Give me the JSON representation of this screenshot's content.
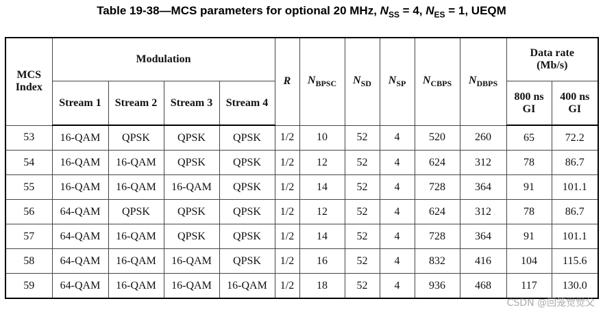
{
  "title": [
    "Table 19-38—MCS parameters for optional 20 MHz, ",
    "N",
    "SS",
    " = 4, ",
    "N",
    "ES",
    " = 1, UEQM"
  ],
  "headers": {
    "mcs_index": "MCS Index",
    "modulation": "Modulation",
    "streams": [
      "Stream 1",
      "Stream 2",
      "Stream 3",
      "Stream 4"
    ],
    "r": "R",
    "n_params": [
      {
        "symbol": "N",
        "sub": "BPSC"
      },
      {
        "symbol": "N",
        "sub": "SD"
      },
      {
        "symbol": "N",
        "sub": "SP"
      },
      {
        "symbol": "N",
        "sub": "CBPS"
      },
      {
        "symbol": "N",
        "sub": "DBPS"
      }
    ],
    "data_rate": "Data rate (Mb/s)",
    "gi": [
      "800 ns GI",
      "400 ns GI"
    ]
  },
  "table": {
    "rows": [
      [
        "53",
        "16-QAM",
        "QPSK",
        "QPSK",
        "QPSK",
        "1/2",
        "10",
        "52",
        "4",
        "520",
        "260",
        "65",
        "72.2"
      ],
      [
        "54",
        "16-QAM",
        "16-QAM",
        "QPSK",
        "QPSK",
        "1/2",
        "12",
        "52",
        "4",
        "624",
        "312",
        "78",
        "86.7"
      ],
      [
        "55",
        "16-QAM",
        "16-QAM",
        "16-QAM",
        "QPSK",
        "1/2",
        "14",
        "52",
        "4",
        "728",
        "364",
        "91",
        "101.1"
      ],
      [
        "56",
        "64-QAM",
        "QPSK",
        "QPSK",
        "QPSK",
        "1/2",
        "12",
        "52",
        "4",
        "624",
        "312",
        "78",
        "86.7"
      ],
      [
        "57",
        "64-QAM",
        "16-QAM",
        "QPSK",
        "QPSK",
        "1/2",
        "14",
        "52",
        "4",
        "728",
        "364",
        "91",
        "101.1"
      ],
      [
        "58",
        "64-QAM",
        "16-QAM",
        "16-QAM",
        "QPSK",
        "1/2",
        "16",
        "52",
        "4",
        "832",
        "416",
        "104",
        "115.6"
      ],
      [
        "59",
        "64-QAM",
        "16-QAM",
        "16-QAM",
        "16-QAM",
        "1/2",
        "18",
        "52",
        "4",
        "936",
        "468",
        "117",
        "130.0"
      ]
    ]
  },
  "watermark": "CSDN @回笼觉觉父"
}
